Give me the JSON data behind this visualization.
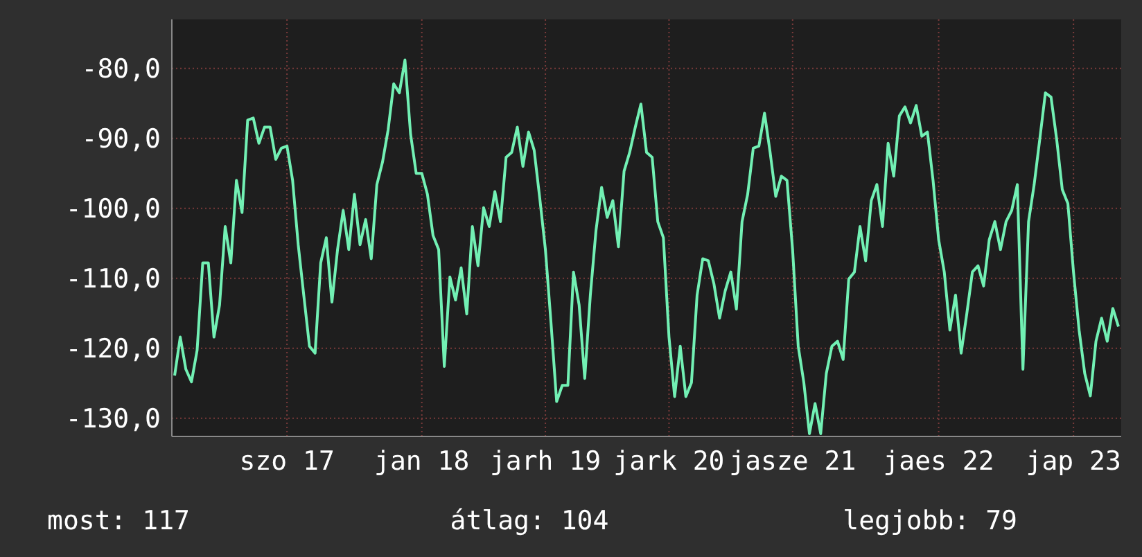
{
  "chart_data": {
    "type": "line",
    "categories": [
      null,
      null,
      null,
      null,
      null,
      null,
      null,
      null,
      null,
      null,
      null,
      null,
      null,
      null,
      null,
      null,
      null,
      null,
      null,
      null,
      "szo 17",
      null,
      null,
      null,
      null,
      null,
      null,
      null,
      null,
      null,
      null,
      null,
      null,
      null,
      null,
      null,
      null,
      null,
      null,
      null,
      null,
      null,
      null,
      null,
      "jan 18",
      null,
      null,
      null,
      null,
      null,
      null,
      null,
      null,
      null,
      null,
      null,
      null,
      null,
      null,
      null,
      null,
      null,
      null,
      null,
      null,
      null,
      "jarh 19",
      null,
      null,
      null,
      null,
      null,
      null,
      null,
      null,
      null,
      null,
      null,
      null,
      null,
      null,
      null,
      null,
      null,
      null,
      null,
      null,
      null,
      "jark 20",
      null,
      null,
      null,
      null,
      null,
      null,
      null,
      null,
      null,
      null,
      null,
      null,
      null,
      null,
      null,
      null,
      null,
      null,
      null,
      null,
      null,
      "jasze 21",
      null,
      null,
      null,
      null,
      null,
      null,
      null,
      null,
      null,
      null,
      null,
      null,
      null,
      null,
      null,
      null,
      null,
      null,
      null,
      null,
      null,
      null,
      null,
      null,
      null,
      "jaes 22",
      null,
      null,
      null,
      null,
      null,
      null,
      null,
      null,
      null,
      null,
      null,
      null,
      null,
      null,
      null,
      null,
      null,
      null,
      null,
      null,
      null,
      null,
      null,
      "jap 23",
      null,
      null,
      null,
      null,
      null,
      null,
      null,
      null
    ],
    "series": [
      {
        "color": "#72f0b4",
        "values": [
          -123.9,
          -118.4,
          -123.0,
          -124.8,
          -120.3,
          -107.8,
          -107.8,
          -118.4,
          -113.8,
          -102.6,
          -107.8,
          -96.0,
          -100.6,
          -87.4,
          -87.1,
          -90.7,
          -88.4,
          -88.4,
          -93.0,
          -91.4,
          -91.1,
          -96.0,
          -105.2,
          -112.5,
          -119.7,
          -120.7,
          -107.8,
          -104.2,
          -113.4,
          -105.9,
          -100.3,
          -105.9,
          -98.0,
          -105.2,
          -101.6,
          -107.2,
          -96.6,
          -93.4,
          -88.8,
          -82.2,
          -83.5,
          -78.8,
          -89.4,
          -95.0,
          -95.0,
          -98.0,
          -103.9,
          -105.9,
          -122.6,
          -109.8,
          -113.1,
          -108.5,
          -115.1,
          -102.6,
          -108.2,
          -99.9,
          -102.6,
          -97.6,
          -101.9,
          -92.7,
          -92.0,
          -88.4,
          -94.0,
          -89.1,
          -91.7,
          -98.6,
          -105.9,
          -116.4,
          -127.6,
          -125.3,
          -125.3,
          -109.1,
          -113.8,
          -124.3,
          -112.4,
          -103.2,
          -97.0,
          -101.3,
          -98.9,
          -105.5,
          -94.7,
          -92.0,
          -88.4,
          -85.1,
          -92.0,
          -92.7,
          -101.9,
          -104.2,
          -118.4,
          -126.9,
          -119.7,
          -126.9,
          -124.9,
          -112.4,
          -107.2,
          -107.5,
          -110.8,
          -115.7,
          -111.8,
          -109.1,
          -114.4,
          -101.9,
          -98.0,
          -91.4,
          -91.1,
          -86.4,
          -92.0,
          -98.3,
          -95.4,
          -96.0,
          -105.9,
          -119.7,
          -124.9,
          -132.2,
          -127.9,
          -132.2,
          -123.6,
          -119.7,
          -119.0,
          -121.6,
          -110.1,
          -109.1,
          -102.6,
          -107.5,
          -98.9,
          -96.6,
          -102.6,
          -90.7,
          -95.4,
          -86.8,
          -85.5,
          -87.8,
          -85.3,
          -89.7,
          -89.1,
          -96.0,
          -104.5,
          -109.1,
          -117.4,
          -112.4,
          -120.7,
          -115.1,
          -109.1,
          -108.2,
          -111.1,
          -104.5,
          -101.9,
          -105.9,
          -101.9,
          -100.3,
          -96.6,
          -123.0,
          -101.9,
          -96.6,
          -90.1,
          -83.5,
          -84.1,
          -90.1,
          -97.3,
          -99.3,
          -109.1,
          -117.4,
          -123.6,
          -126.8,
          -119.0,
          -115.7,
          -119.0,
          -114.3,
          -116.9
        ]
      }
    ],
    "ylim": [
      -132.6,
      -73
    ],
    "yticks": [
      {
        "value": -130,
        "label": "-130,0"
      },
      {
        "value": -120,
        "label": "-120,0"
      },
      {
        "value": -110,
        "label": "-110,0"
      },
      {
        "value": -100,
        "label": "-100,0"
      },
      {
        "value": -90,
        "label": "-90,0"
      },
      {
        "value": -80,
        "label": "-80,0"
      }
    ],
    "grid": true,
    "annotations": [
      "most: 117",
      "átlag: 104",
      "legjobb: 79"
    ]
  }
}
